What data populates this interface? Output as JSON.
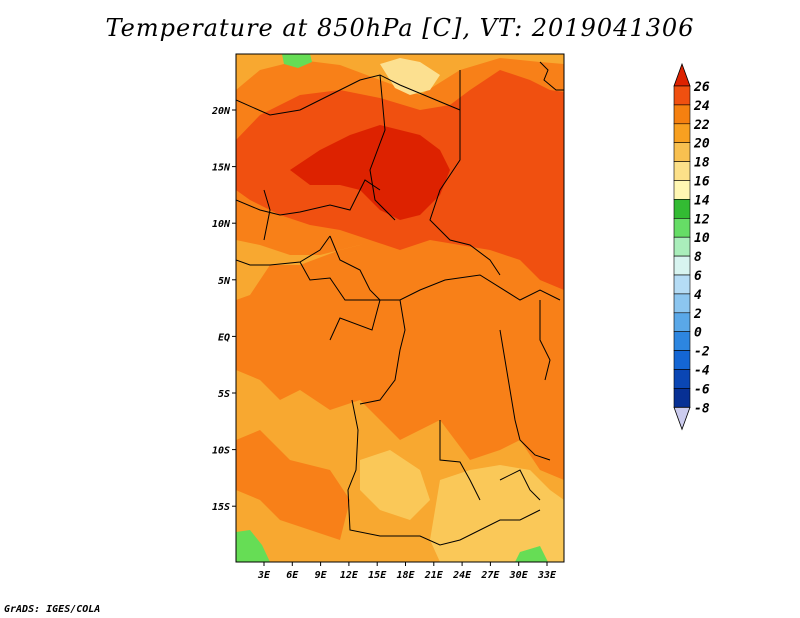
{
  "title": "Temperature at 850hPa [C], VT: 2019041306",
  "credit": "GrADS: IGES/COLA",
  "map": {
    "lon_ticks": [
      "3E",
      "6E",
      "9E",
      "12E",
      "15E",
      "18E",
      "21E",
      "24E",
      "27E",
      "30E",
      "33E"
    ],
    "lat_ticks": [
      "20N",
      "15N",
      "10N",
      "5N",
      "EQ",
      "5S",
      "10S",
      "15S"
    ],
    "field_palette": {
      "t24": "#dd2200",
      "t22": "#f05010",
      "t20": "#f88018",
      "t18": "#f8a830",
      "t16": "#fac858",
      "t14": "#fce090",
      "t12": "#66dd55",
      "coast_line": "#000000"
    }
  },
  "colorbar": {
    "levels": [
      "26",
      "24",
      "22",
      "20",
      "18",
      "16",
      "14",
      "12",
      "10",
      "8",
      "6",
      "4",
      "2",
      "0",
      "-2",
      "-4",
      "-6",
      "-8"
    ],
    "colors": [
      "#dd2200",
      "#f05010",
      "#f58010",
      "#f8a020",
      "#f8c050",
      "#fce089",
      "#fff7b3",
      "#33bb33",
      "#66dd66",
      "#aaeebb",
      "#d8f4f0",
      "#b5dcf5",
      "#8cc6f0",
      "#5aa8e8",
      "#2d86e0",
      "#1466d4",
      "#0a46b4",
      "#073094",
      "#091a6a"
    ],
    "top_arrow_color": "#dd2200",
    "bottom_arrow_color": "#ccccee"
  }
}
